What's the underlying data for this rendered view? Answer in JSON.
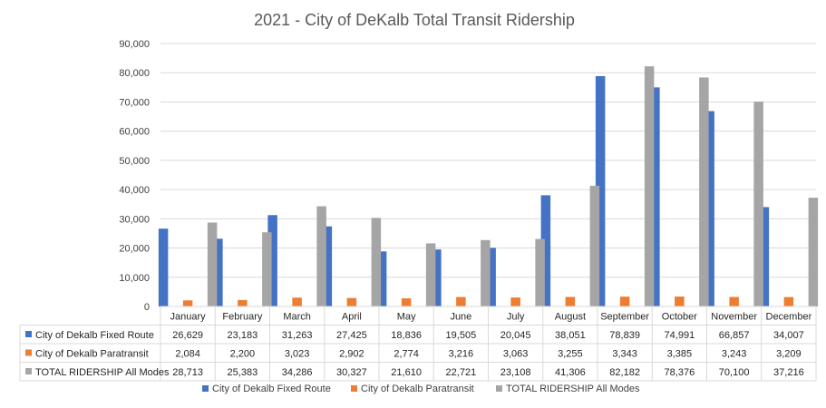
{
  "chart_data": {
    "type": "bar",
    "title": "2021 -  City of DeKalb Total Transit Ridership",
    "categories": [
      "January",
      "February",
      "March",
      "April",
      "May",
      "June",
      "July",
      "August",
      "September",
      "October",
      "November",
      "December"
    ],
    "series": [
      {
        "name": "City of Dekalb  Fixed Route",
        "color": "#4472C4",
        "values": [
          26629,
          23183,
          31263,
          27425,
          18836,
          19505,
          20045,
          38051,
          78839,
          74991,
          66857,
          34007
        ],
        "labels": [
          "26,629",
          "23,183",
          "31,263",
          "27,425",
          "18,836",
          "19,505",
          "20,045",
          "38,051",
          "78,839",
          "74,991",
          "66,857",
          "34,007"
        ]
      },
      {
        "name": "City of Dekalb  Paratransit",
        "color": "#ED7D31",
        "values": [
          2084,
          2200,
          3023,
          2902,
          2774,
          3216,
          3063,
          3255,
          3343,
          3385,
          3243,
          3209
        ],
        "labels": [
          "2,084",
          "2,200",
          "3,023",
          "2,902",
          "2,774",
          "3,216",
          "3,063",
          "3,255",
          "3,343",
          "3,385",
          "3,243",
          "3,209"
        ]
      },
      {
        "name": "TOTAL RIDERSHIP All Modes",
        "color": "#A5A5A5",
        "values": [
          28713,
          25383,
          34286,
          30327,
          21610,
          22721,
          23108,
          41306,
          82182,
          78376,
          70100,
          37216
        ],
        "labels": [
          "28,713",
          "25,383",
          "34,286",
          "30,327",
          "21,610",
          "22,721",
          "23,108",
          "41,306",
          "82,182",
          "78,376",
          "70,100",
          "37,216"
        ]
      }
    ],
    "ylim": [
      0,
      90000
    ],
    "yticks": [
      0,
      10000,
      20000,
      30000,
      40000,
      50000,
      60000,
      70000,
      80000,
      90000
    ],
    "ytick_labels": [
      "0",
      "10,000",
      "20,000",
      "30,000",
      "40,000",
      "50,000",
      "60,000",
      "70,000",
      "80,000",
      "90,000"
    ],
    "grid": true,
    "data_table": true,
    "legend_position": "bottom"
  }
}
